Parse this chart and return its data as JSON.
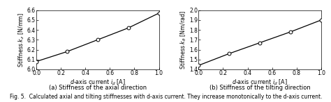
{
  "plot1": {
    "x": [
      0.0,
      0.25,
      0.5,
      0.75,
      1.0
    ],
    "y": [
      6.08,
      6.18,
      6.3,
      6.42,
      6.57
    ],
    "xlabel": "$d$-axis current $i_d$ [A]",
    "ylabel": "Stiffness $k_z$ [N/mm]",
    "xlim": [
      0,
      1
    ],
    "ylim": [
      6.0,
      6.6
    ],
    "yticks": [
      6.0,
      6.1,
      6.2,
      6.3,
      6.4,
      6.5,
      6.6
    ],
    "xticks": [
      0,
      0.2,
      0.4,
      0.6,
      0.8,
      1.0
    ],
    "caption": "(a) Stiffness of the axial direction"
  },
  "plot2": {
    "x": [
      0.0,
      0.25,
      0.5,
      0.75,
      1.0
    ],
    "y": [
      1.44,
      1.56,
      1.67,
      1.78,
      1.9
    ],
    "xlabel": "$d$-axis current $i_d$ [A]",
    "ylabel": "Stiffness $k_{\\theta}$ [Nm/rad]",
    "xlim": [
      0,
      1
    ],
    "ylim": [
      1.4,
      2.0
    ],
    "yticks": [
      1.4,
      1.5,
      1.6,
      1.7,
      1.8,
      1.9,
      2.0
    ],
    "xticks": [
      0,
      0.2,
      0.4,
      0.6,
      0.8,
      1.0
    ],
    "caption": "(b) Stiffness of the tilting direction"
  },
  "line_color": "#000000",
  "marker_color": "#ffffff",
  "marker_edge_color": "#000000",
  "marker_size": 3.5,
  "font_size": 5.8,
  "tick_font_size": 5.5,
  "caption_font_size": 6.0,
  "fig_caption": "Fig. 5.  Calculated axial and tilting stiffnesses with d-axis current. They increase monotonically to the d-axis current.",
  "fig_caption_font_size": 5.5
}
